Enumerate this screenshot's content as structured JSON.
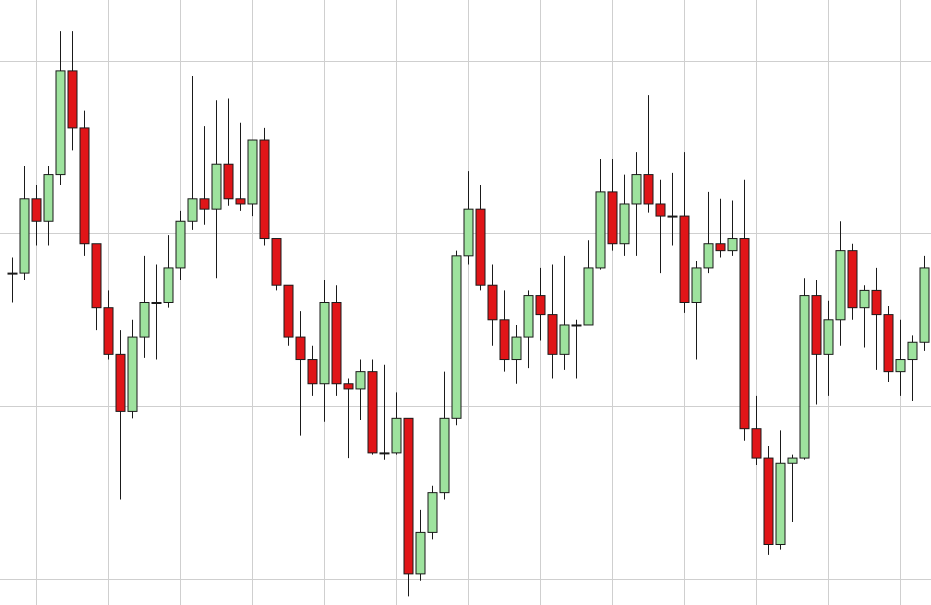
{
  "chart_data": {
    "type": "candlestick",
    "categories": [
      null,
      null,
      null,
      null,
      null,
      null,
      null,
      null,
      null,
      null,
      null,
      null,
      null,
      null,
      null,
      null,
      null,
      null,
      null,
      null,
      null,
      null,
      null,
      null,
      null,
      null,
      null,
      null,
      null,
      null,
      null,
      null,
      null,
      null,
      null,
      null,
      null,
      null,
      null,
      null,
      null,
      null,
      null,
      null,
      null,
      null,
      null,
      null,
      null,
      null,
      null,
      null,
      null,
      null,
      null,
      null,
      null,
      null,
      null,
      null,
      null,
      null,
      null,
      null,
      null,
      null,
      null,
      null,
      null,
      null,
      null,
      null,
      null,
      null,
      null,
      null,
      null
    ],
    "open": [
      17.7,
      17.7,
      22.0,
      20.7,
      23.4,
      29.4,
      26.1,
      19.4,
      15.7,
      13.0,
      9.7,
      14.0,
      16.0,
      16.0,
      18.0,
      20.7,
      22.0,
      21.4,
      24.0,
      22.0,
      21.7,
      25.4,
      19.7,
      17.0,
      14.0,
      12.7,
      11.3,
      16.0,
      11.3,
      11.0,
      12.0,
      7.3,
      7.3,
      9.3,
      0.3,
      2.7,
      5.0,
      9.3,
      18.7,
      21.4,
      17.0,
      15.0,
      12.7,
      14.0,
      16.4,
      15.3,
      13.0,
      14.7,
      14.7,
      18.0,
      22.4,
      19.4,
      21.7,
      23.4,
      21.7,
      21.0,
      21.0,
      16.0,
      18.0,
      19.4,
      19.0,
      19.7,
      8.7,
      7.0,
      2.0,
      6.7,
      7.0,
      16.4,
      13.0,
      15.0,
      19.0,
      15.7,
      16.7,
      15.3,
      12.0,
      12.7,
      13.7
    ],
    "high": [
      18.6,
      23.9,
      22.8,
      23.9,
      31.7,
      31.7,
      27.1,
      19.4,
      16.7,
      14.4,
      15.0,
      18.7,
      18.2,
      19.9,
      21.3,
      29.1,
      26.2,
      27.7,
      27.8,
      26.4,
      25.4,
      26.1,
      19.7,
      17.0,
      15.5,
      13.5,
      17.3,
      17.0,
      11.6,
      12.7,
      12.7,
      12.4,
      10.8,
      9.3,
      4.0,
      5.4,
      12.0,
      19.0,
      23.6,
      22.8,
      18.2,
      16.7,
      14.7,
      16.7,
      18.0,
      18.2,
      18.7,
      15.0,
      19.6,
      24.3,
      24.3,
      23.4,
      24.7,
      28.0,
      23.1,
      23.5,
      24.7,
      18.4,
      22.4,
      22.0,
      21.9,
      23.1,
      10.6,
      7.7,
      8.6,
      7.2,
      17.4,
      17.3,
      16.1,
      20.7,
      19.4,
      17.0,
      18.0,
      15.8,
      15.0,
      14.1,
      18.7
    ],
    "low": [
      16.0,
      17.3,
      19.3,
      19.3,
      22.8,
      24.8,
      18.7,
      14.4,
      12.7,
      4.6,
      9.3,
      12.8,
      12.7,
      15.7,
      17.3,
      20.2,
      20.5,
      17.4,
      21.6,
      21.3,
      21.0,
      19.3,
      16.7,
      13.5,
      8.3,
      10.6,
      9.1,
      10.6,
      7.0,
      9.2,
      7.2,
      6.9,
      7.2,
      -1.0,
      -0.1,
      2.3,
      4.6,
      8.9,
      18.2,
      16.7,
      13.5,
      12.0,
      11.3,
      12.2,
      13.8,
      11.6,
      12.1,
      11.6,
      14.7,
      17.9,
      19.0,
      18.7,
      18.7,
      21.2,
      17.7,
      19.3,
      15.4,
      12.7,
      17.7,
      18.6,
      18.7,
      8.0,
      6.6,
      1.4,
      1.7,
      3.3,
      6.9,
      10.1,
      10.6,
      13.5,
      15.0,
      13.4,
      12.1,
      11.4,
      10.6,
      10.3,
      13.2
    ],
    "close": [
      17.7,
      22.0,
      20.7,
      23.4,
      29.4,
      26.1,
      19.4,
      15.7,
      13.0,
      9.7,
      14.0,
      16.0,
      16.0,
      18.0,
      20.7,
      22.0,
      21.4,
      24.0,
      22.0,
      21.7,
      25.4,
      19.7,
      17.0,
      14.0,
      12.7,
      11.3,
      16.0,
      11.3,
      11.0,
      12.0,
      7.3,
      7.3,
      9.3,
      0.3,
      2.7,
      5.0,
      9.3,
      18.7,
      21.4,
      17.0,
      15.0,
      12.7,
      14.0,
      16.4,
      15.3,
      13.0,
      14.7,
      14.7,
      18.0,
      22.4,
      19.4,
      21.7,
      23.4,
      21.7,
      21.0,
      21.0,
      16.0,
      18.0,
      19.4,
      19.0,
      19.7,
      8.7,
      7.0,
      2.0,
      6.7,
      7.0,
      16.4,
      13.0,
      15.0,
      19.0,
      15.7,
      16.7,
      15.3,
      12.0,
      12.7,
      13.7,
      18.0
    ],
    "up_color": "#9ee39e",
    "down_color": "#e01518",
    "ylim": [
      -1.5,
      33.5
    ],
    "yticks": [
      0,
      10,
      20,
      30
    ],
    "grid": true
  }
}
